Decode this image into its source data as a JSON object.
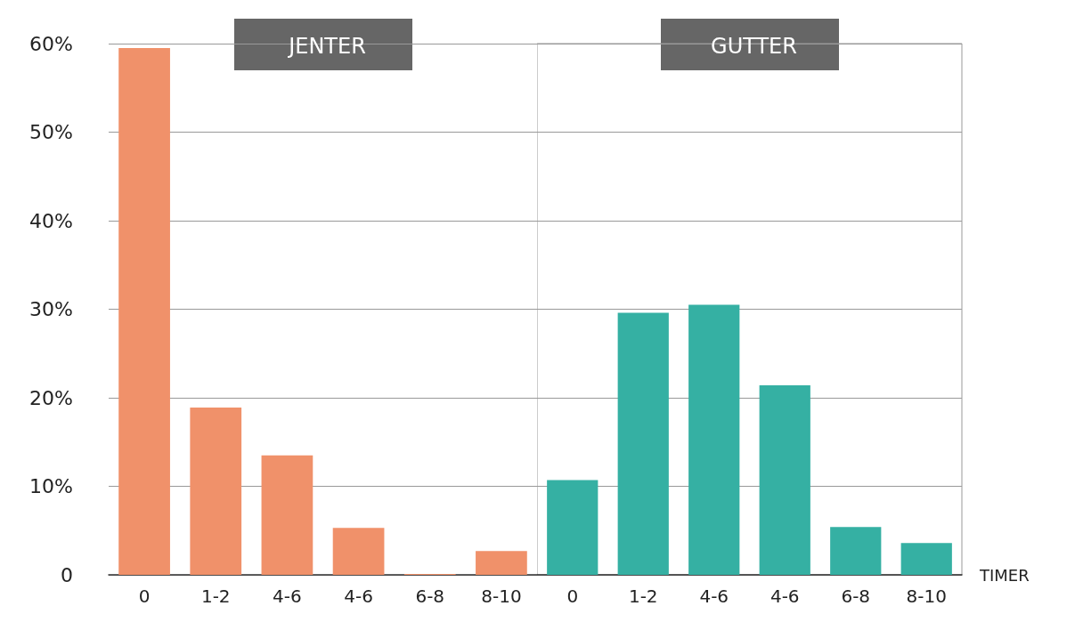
{
  "chart_data": [
    {
      "type": "bar",
      "title": "JENTER",
      "categories": [
        "0",
        "1-2",
        "4-6",
        "4-6",
        "6-8",
        "8-10"
      ],
      "values": [
        59.5,
        18.9,
        13.5,
        5.3,
        0.1,
        2.7
      ],
      "color": "#f0916a",
      "ylim": [
        0,
        60
      ],
      "yticks": [
        {
          "value": 0,
          "label": "0"
        },
        {
          "value": 10,
          "label": "10%"
        },
        {
          "value": 20,
          "label": "20%"
        },
        {
          "value": 30,
          "label": "30%"
        },
        {
          "value": 40,
          "label": "40%"
        },
        {
          "value": 50,
          "label": "50%"
        },
        {
          "value": 60,
          "label": "60%"
        }
      ],
      "grid": "y"
    },
    {
      "type": "bar",
      "title": "GUTTER",
      "xlabel": "TIMER",
      "categories": [
        "0",
        "1-2",
        "4-6",
        "4-6",
        "6-8",
        "8-10"
      ],
      "values": [
        10.7,
        29.6,
        30.5,
        21.4,
        5.4,
        3.6
      ],
      "color": "#35b0a3",
      "ylim": [
        0,
        60
      ],
      "yticks": [
        0,
        10,
        20,
        30,
        40,
        50,
        60
      ],
      "grid": "y",
      "tick_labels": "x"
    }
  ]
}
